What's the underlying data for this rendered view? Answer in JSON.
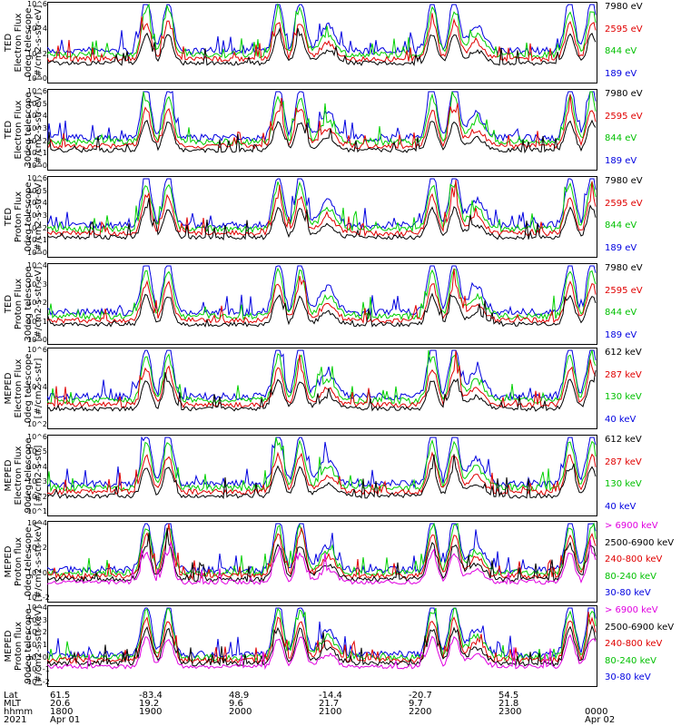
{
  "chart_data": [
    {
      "type": "line",
      "ylabel": "TED\nElectron Flux\n0deg telescope\n[#/cm2-s-str-eV]",
      "y_ticks": [
        "10^6",
        "10^4",
        "10^2",
        "10^0"
      ],
      "legend": [
        {
          "name": "7980 eV",
          "color": "#000000"
        },
        {
          "name": "2595 eV",
          "color": "#e00000"
        },
        {
          "name": "844 eV",
          "color": "#00d000"
        },
        {
          "name": "189 eV",
          "color": "#0000e0"
        }
      ],
      "scale": "log"
    },
    {
      "type": "line",
      "ylabel": "TED\nElectron Flux\n30deg telescope\n[#/cm2-s-str-eV]",
      "y_ticks": [
        "10^6",
        "10^5",
        "10^4",
        "10^3",
        "10^2",
        "10^1",
        "10^0"
      ],
      "legend": [
        {
          "name": "7980 eV",
          "color": "#000000"
        },
        {
          "name": "2595 eV",
          "color": "#e00000"
        },
        {
          "name": "844 eV",
          "color": "#00d000"
        },
        {
          "name": "189 eV",
          "color": "#0000e0"
        }
      ],
      "scale": "log"
    },
    {
      "type": "line",
      "ylabel": "TED\nProton Flux\n0deg telescope\n[#/cm2-s-str-eV]",
      "y_ticks": [
        "10^6",
        "10^5",
        "10^4",
        "10^3",
        "10^2",
        "10^1",
        "10^0"
      ],
      "legend": [
        {
          "name": "7980 eV",
          "color": "#000000"
        },
        {
          "name": "2595 eV",
          "color": "#e00000"
        },
        {
          "name": "844 eV",
          "color": "#00d000"
        },
        {
          "name": "189 eV",
          "color": "#0000e0"
        }
      ],
      "scale": "log"
    },
    {
      "type": "line",
      "ylabel": "TED\nProton Flux\n30deg telescope\n[#/cm2-s-str-eV]",
      "y_ticks": [
        "10^4",
        "10^3",
        "10^2",
        "10^1",
        "10^0"
      ],
      "legend": [
        {
          "name": "7980 eV",
          "color": "#000000"
        },
        {
          "name": "2595 eV",
          "color": "#e00000"
        },
        {
          "name": "844 eV",
          "color": "#00d000"
        },
        {
          "name": "189 eV",
          "color": "#0000e0"
        }
      ],
      "scale": "log"
    },
    {
      "type": "line",
      "ylabel": "MEPED\nElectron Flux\n0deg telescope\n[#/cm2-s-str]",
      "y_ticks": [
        "10^6",
        "10^4",
        "10^2"
      ],
      "legend": [
        {
          "name": "612 keV",
          "color": "#000000"
        },
        {
          "name": "287 keV",
          "color": "#e00000"
        },
        {
          "name": "130 keV",
          "color": "#00d000"
        },
        {
          "name": "40 keV",
          "color": "#0000e0"
        }
      ],
      "scale": "log"
    },
    {
      "type": "line",
      "ylabel": "MEPED\nElectron Flux\n90deg telescope\n[#/cm2-s-str]",
      "y_ticks": [
        "10^6",
        "10^5",
        "10^4",
        "10^3",
        "10^2",
        "10^1"
      ],
      "legend": [
        {
          "name": "612 keV",
          "color": "#000000"
        },
        {
          "name": "287 keV",
          "color": "#e00000"
        },
        {
          "name": "130 keV",
          "color": "#00d000"
        },
        {
          "name": "40 keV",
          "color": "#0000e0"
        }
      ],
      "scale": "log"
    },
    {
      "type": "line",
      "ylabel": "MEPED\nProton flux\n0deg telescope\n[#/cm2-s-str-keV]",
      "y_ticks": [
        "10^4",
        "10^2",
        "10^0",
        "10^-2"
      ],
      "legend": [
        {
          "name": "> 6900 keV",
          "color": "#e000e0"
        },
        {
          "name": "2500-6900 keV",
          "color": "#000000"
        },
        {
          "name": "240-800 keV",
          "color": "#e00000"
        },
        {
          "name": "80-240 keV",
          "color": "#00d000"
        },
        {
          "name": "30-80 keV",
          "color": "#0000e0"
        }
      ],
      "scale": "log"
    },
    {
      "type": "line",
      "ylabel": "MEPED\nProton flux\n90deg telescope\n[#/cm2-s-str-keV]",
      "y_ticks": [
        "10^4",
        "10^3",
        "10^2",
        "10^1",
        "10^0",
        "10^-1",
        "10^-2"
      ],
      "legend": [
        {
          "name": "> 6900 keV",
          "color": "#e000e0"
        },
        {
          "name": "2500-6900 keV",
          "color": "#000000"
        },
        {
          "name": "240-800 keV",
          "color": "#e00000"
        },
        {
          "name": "80-240 keV",
          "color": "#00d000"
        },
        {
          "name": "30-80 keV",
          "color": "#0000e0"
        }
      ],
      "scale": "log"
    }
  ],
  "x_axis": {
    "row_labels": [
      "Lat",
      "MLT",
      "hhmm",
      "2021"
    ],
    "columns": [
      {
        "lat": "61.5",
        "mlt": "20.6",
        "hhmm": "1800",
        "date": "Apr 01"
      },
      {
        "lat": "-83.4",
        "mlt": "19.2",
        "hhmm": "1900",
        "date": ""
      },
      {
        "lat": "48.9",
        "mlt": "9.6",
        "hhmm": "2000",
        "date": ""
      },
      {
        "lat": "-14.4",
        "mlt": "21.7",
        "hhmm": "2100",
        "date": ""
      },
      {
        "lat": "-20.7",
        "mlt": "9.7",
        "hhmm": "2200",
        "date": ""
      },
      {
        "lat": "54.5",
        "mlt": "21.8",
        "hhmm": "2300",
        "date": ""
      },
      {
        "lat": "",
        "mlt": "",
        "hhmm": "0000",
        "date": "Apr 02"
      }
    ]
  },
  "colors": {
    "black": "#000000",
    "red": "#e00000",
    "green": "#00d000",
    "blue": "#0000e0",
    "magenta": "#e000e0"
  }
}
